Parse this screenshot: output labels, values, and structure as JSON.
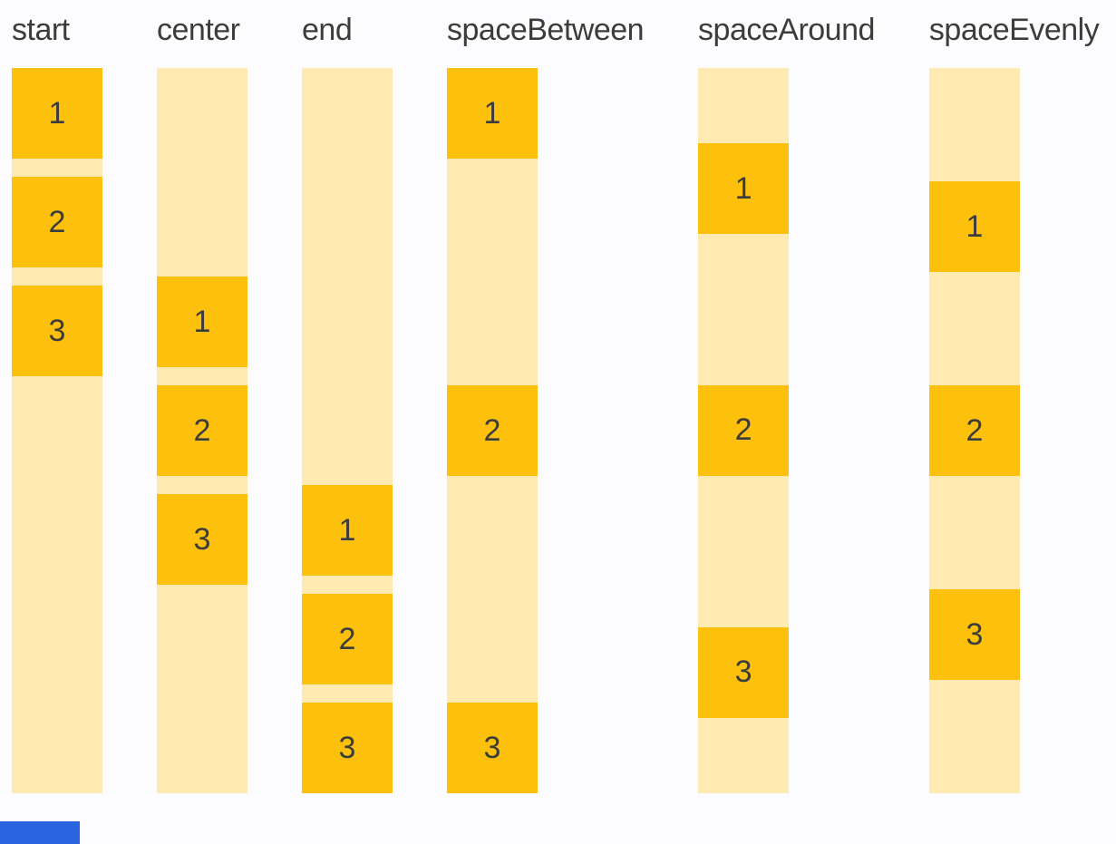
{
  "palette": {
    "box": "#FCC00D",
    "track": "#FFEBB2",
    "label_text": "#3C3C3C",
    "digit_text": "#3C3C3C",
    "page_bg": "#FCFCFE",
    "scrollbar": "#2A65DF"
  },
  "groups": [
    {
      "label": "start",
      "mode": "start",
      "items": [
        "1",
        "2",
        "3"
      ]
    },
    {
      "label": "center",
      "mode": "center",
      "items": [
        "1",
        "2",
        "3"
      ]
    },
    {
      "label": "end",
      "mode": "end",
      "items": [
        "1",
        "2",
        "3"
      ]
    },
    {
      "label": "spaceBetween",
      "mode": "spaceBetween",
      "items": [
        "1",
        "2",
        "3"
      ]
    },
    {
      "label": "spaceAround",
      "mode": "spaceAround",
      "items": [
        "1",
        "2",
        "3"
      ]
    },
    {
      "label": "spaceEvenly",
      "mode": "spaceEvenly",
      "items": [
        "1",
        "2",
        "3"
      ]
    }
  ]
}
